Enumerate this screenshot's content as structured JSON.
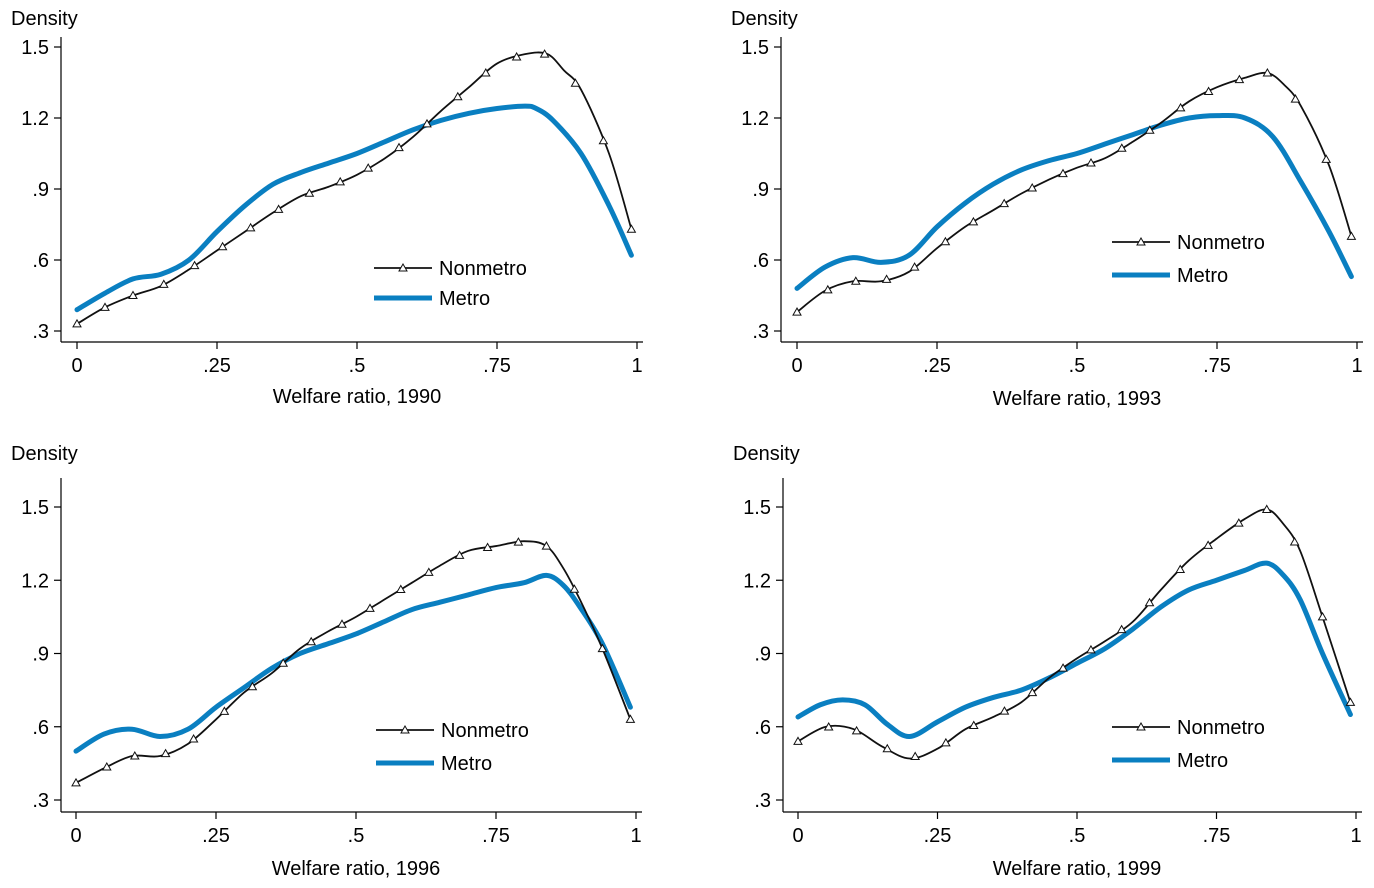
{
  "chart_data": [
    {
      "type": "line",
      "ylabel": "Density",
      "xlabel": "Welfare ratio, 1990",
      "xlim": [
        0,
        1
      ],
      "ylim": [
        0.3,
        1.5
      ],
      "xticks": [
        "0",
        ".25",
        ".5",
        ".75",
        "1"
      ],
      "yticks": [
        ".3",
        ".6",
        ".9",
        "1.2",
        "1.5"
      ],
      "legend": "inside-right",
      "series": [
        {
          "name": "Nonmetro",
          "color": "#111111",
          "marker": "triangle",
          "x": [
            0,
            0.05,
            0.1,
            0.15,
            0.2,
            0.25,
            0.3,
            0.35,
            0.4,
            0.45,
            0.5,
            0.55,
            0.6,
            0.65,
            0.7,
            0.75,
            0.8,
            0.84,
            0.87,
            0.9,
            0.95,
            0.99
          ],
          "y": [
            0.33,
            0.4,
            0.45,
            0.49,
            0.56,
            0.64,
            0.72,
            0.8,
            0.87,
            0.91,
            0.96,
            1.03,
            1.12,
            1.23,
            1.33,
            1.43,
            1.47,
            1.47,
            1.4,
            1.32,
            1.05,
            0.73
          ],
          "markers_x": [
            0,
            0.05,
            0.1,
            0.155,
            0.21,
            0.26,
            0.31,
            0.36,
            0.415,
            0.47,
            0.52,
            0.575,
            0.625,
            0.68,
            0.73,
            0.785,
            0.835,
            0.89,
            0.94,
            0.99
          ]
        },
        {
          "name": "Metro",
          "color": "#0a7fc1",
          "marker": "none",
          "x": [
            0,
            0.05,
            0.1,
            0.15,
            0.2,
            0.25,
            0.3,
            0.35,
            0.4,
            0.45,
            0.5,
            0.55,
            0.6,
            0.65,
            0.7,
            0.75,
            0.8,
            0.82,
            0.85,
            0.9,
            0.95,
            0.99
          ],
          "y": [
            0.39,
            0.46,
            0.52,
            0.54,
            0.6,
            0.72,
            0.83,
            0.92,
            0.97,
            1.01,
            1.05,
            1.1,
            1.15,
            1.19,
            1.22,
            1.24,
            1.25,
            1.24,
            1.19,
            1.05,
            0.83,
            0.62
          ]
        }
      ]
    },
    {
      "type": "line",
      "ylabel": "Density",
      "xlabel": "Welfare ratio, 1993",
      "xlim": [
        0,
        1
      ],
      "ylim": [
        0.3,
        1.5
      ],
      "xticks": [
        "0",
        ".25",
        ".5",
        ".75",
        "1"
      ],
      "yticks": [
        ".3",
        ".6",
        ".9",
        "1.2",
        "1.5"
      ],
      "legend": "inside-right",
      "series": [
        {
          "name": "Nonmetro",
          "color": "#111111",
          "marker": "triangle",
          "x": [
            0,
            0.05,
            0.1,
            0.15,
            0.2,
            0.25,
            0.3,
            0.35,
            0.4,
            0.45,
            0.5,
            0.55,
            0.6,
            0.65,
            0.7,
            0.75,
            0.8,
            0.84,
            0.87,
            0.9,
            0.95,
            0.99
          ],
          "y": [
            0.38,
            0.47,
            0.51,
            0.51,
            0.55,
            0.65,
            0.74,
            0.81,
            0.88,
            0.94,
            0.99,
            1.03,
            1.1,
            1.18,
            1.27,
            1.33,
            1.37,
            1.39,
            1.34,
            1.25,
            1.0,
            0.7
          ],
          "markers_x": [
            0,
            0.055,
            0.105,
            0.16,
            0.21,
            0.265,
            0.315,
            0.37,
            0.42,
            0.475,
            0.525,
            0.58,
            0.63,
            0.685,
            0.735,
            0.79,
            0.84,
            0.89,
            0.945,
            0.99
          ]
        },
        {
          "name": "Metro",
          "color": "#0a7fc1",
          "marker": "none",
          "x": [
            0,
            0.05,
            0.1,
            0.15,
            0.2,
            0.25,
            0.3,
            0.35,
            0.4,
            0.45,
            0.5,
            0.55,
            0.6,
            0.65,
            0.7,
            0.75,
            0.8,
            0.85,
            0.9,
            0.95,
            0.99
          ],
          "y": [
            0.48,
            0.57,
            0.61,
            0.59,
            0.62,
            0.74,
            0.84,
            0.92,
            0.98,
            1.02,
            1.05,
            1.09,
            1.13,
            1.17,
            1.2,
            1.21,
            1.2,
            1.12,
            0.93,
            0.72,
            0.53
          ]
        }
      ]
    },
    {
      "type": "line",
      "ylabel": "Density",
      "xlabel": "Welfare ratio, 1996",
      "xlim": [
        0,
        1
      ],
      "ylim": [
        0.3,
        1.5
      ],
      "xticks": [
        "0",
        ".25",
        ".5",
        ".75",
        "1"
      ],
      "yticks": [
        ".3",
        ".6",
        ".9",
        "1.2",
        "1.5"
      ],
      "legend": "inside-right",
      "series": [
        {
          "name": "Nonmetro",
          "color": "#111111",
          "marker": "triangle",
          "x": [
            0,
            0.05,
            0.1,
            0.15,
            0.2,
            0.25,
            0.3,
            0.35,
            0.4,
            0.45,
            0.5,
            0.55,
            0.6,
            0.65,
            0.7,
            0.75,
            0.8,
            0.84,
            0.87,
            0.9,
            0.94,
            0.99
          ],
          "y": [
            0.37,
            0.43,
            0.48,
            0.48,
            0.53,
            0.63,
            0.74,
            0.82,
            0.92,
            0.99,
            1.05,
            1.12,
            1.19,
            1.26,
            1.32,
            1.34,
            1.36,
            1.34,
            1.25,
            1.12,
            0.92,
            0.63
          ],
          "markers_x": [
            0,
            0.055,
            0.105,
            0.16,
            0.21,
            0.265,
            0.315,
            0.37,
            0.42,
            0.475,
            0.525,
            0.58,
            0.63,
            0.685,
            0.735,
            0.79,
            0.84,
            0.89,
            0.94,
            0.99
          ]
        },
        {
          "name": "Metro",
          "color": "#0a7fc1",
          "marker": "none",
          "x": [
            0,
            0.05,
            0.1,
            0.15,
            0.2,
            0.25,
            0.3,
            0.35,
            0.4,
            0.45,
            0.5,
            0.55,
            0.6,
            0.65,
            0.7,
            0.75,
            0.8,
            0.84,
            0.87,
            0.9,
            0.94,
            0.99
          ],
          "y": [
            0.5,
            0.57,
            0.59,
            0.56,
            0.59,
            0.68,
            0.76,
            0.84,
            0.9,
            0.94,
            0.98,
            1.03,
            1.08,
            1.11,
            1.14,
            1.17,
            1.19,
            1.22,
            1.18,
            1.09,
            0.94,
            0.68
          ]
        }
      ]
    },
    {
      "type": "line",
      "ylabel": "Density",
      "xlabel": "Welfare ratio, 1999",
      "xlim": [
        0,
        1
      ],
      "ylim": [
        0.3,
        1.5
      ],
      "xticks": [
        "0",
        ".25",
        ".5",
        ".75",
        "1"
      ],
      "yticks": [
        ".3",
        ".6",
        ".9",
        "1.2",
        "1.5"
      ],
      "legend": "inside-right",
      "series": [
        {
          "name": "Nonmetro",
          "color": "#111111",
          "marker": "triangle",
          "x": [
            0,
            0.05,
            0.1,
            0.15,
            0.2,
            0.25,
            0.3,
            0.35,
            0.4,
            0.45,
            0.5,
            0.55,
            0.6,
            0.65,
            0.7,
            0.75,
            0.8,
            0.84,
            0.87,
            0.9,
            0.94,
            0.99
          ],
          "y": [
            0.54,
            0.6,
            0.59,
            0.52,
            0.47,
            0.51,
            0.59,
            0.64,
            0.7,
            0.8,
            0.88,
            0.95,
            1.03,
            1.16,
            1.28,
            1.37,
            1.45,
            1.49,
            1.43,
            1.32,
            1.05,
            0.7
          ],
          "markers_x": [
            0,
            0.055,
            0.105,
            0.16,
            0.21,
            0.265,
            0.315,
            0.37,
            0.42,
            0.475,
            0.525,
            0.58,
            0.63,
            0.685,
            0.735,
            0.79,
            0.84,
            0.89,
            0.94,
            0.99
          ]
        },
        {
          "name": "Metro",
          "color": "#0a7fc1",
          "marker": "none",
          "x": [
            0,
            0.04,
            0.08,
            0.12,
            0.16,
            0.2,
            0.25,
            0.3,
            0.35,
            0.4,
            0.45,
            0.5,
            0.55,
            0.6,
            0.65,
            0.7,
            0.75,
            0.8,
            0.84,
            0.87,
            0.9,
            0.94,
            0.99
          ],
          "y": [
            0.64,
            0.69,
            0.71,
            0.69,
            0.61,
            0.56,
            0.62,
            0.68,
            0.72,
            0.75,
            0.8,
            0.86,
            0.92,
            1.0,
            1.09,
            1.16,
            1.2,
            1.24,
            1.27,
            1.22,
            1.12,
            0.9,
            0.65
          ]
        }
      ]
    }
  ]
}
